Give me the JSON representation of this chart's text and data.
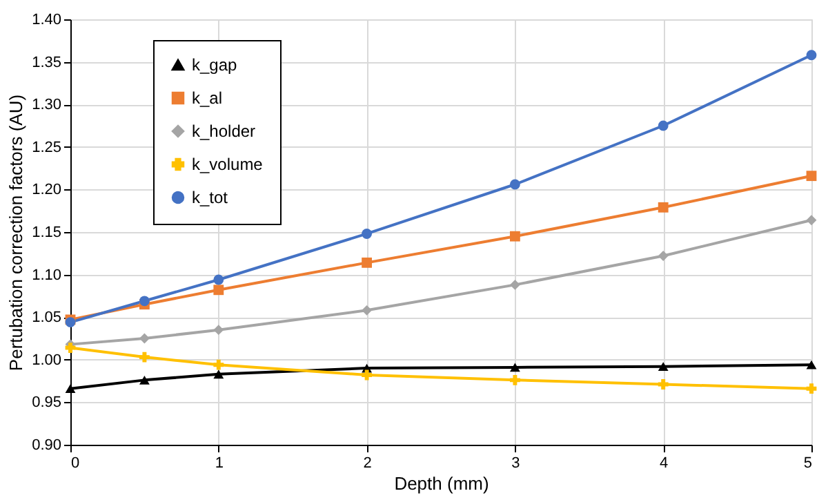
{
  "chart_data": {
    "type": "line",
    "xlabel": "Depth (mm)",
    "ylabel": "Pertubation correction factors (AU)",
    "x": [
      0,
      0.5,
      1,
      2,
      3,
      4,
      5
    ],
    "series": [
      {
        "name": "k_gap",
        "color": "#000000",
        "marker": "triangle",
        "values": [
          0.966,
          0.976,
          0.983,
          0.99,
          0.991,
          0.992,
          0.994
        ]
      },
      {
        "name": "k_al",
        "color": "#ed7d31",
        "marker": "square",
        "values": [
          1.047,
          1.065,
          1.082,
          1.114,
          1.145,
          1.179,
          1.216
        ]
      },
      {
        "name": "k_holder",
        "color": "#a5a5a5",
        "marker": "diamond",
        "values": [
          1.018,
          1.025,
          1.035,
          1.058,
          1.088,
          1.122,
          1.164
        ]
      },
      {
        "name": "k_volume",
        "color": "#ffc000",
        "marker": "cross",
        "values": [
          1.014,
          1.003,
          0.994,
          0.982,
          0.976,
          0.971,
          0.966
        ]
      },
      {
        "name": "k_tot",
        "color": "#4472c4",
        "marker": "circle",
        "values": [
          1.044,
          1.069,
          1.094,
          1.148,
          1.206,
          1.275,
          1.358
        ]
      }
    ],
    "xlim": [
      0,
      5
    ],
    "xticks": [
      0,
      1,
      2,
      3,
      4,
      5
    ],
    "ylim": [
      0.9,
      1.4
    ],
    "yticks": [
      {
        "value": 0.9,
        "label": "0.90"
      },
      0.95,
      {
        "value": 1.0,
        "label": "1.00"
      },
      1.05,
      {
        "value": 1.1,
        "label": "1.10"
      },
      1.15,
      {
        "value": 1.2,
        "label": "1.20"
      },
      1.25,
      {
        "value": 1.3,
        "label": "1.30"
      },
      1.35,
      {
        "value": 1.4,
        "label": "1.40"
      }
    ],
    "grid": true,
    "legend": "top left",
    "line_style": "solid"
  }
}
